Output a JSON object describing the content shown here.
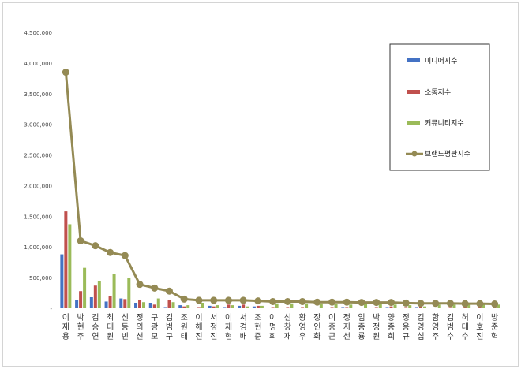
{
  "chart_data": {
    "type": "bar",
    "title": "",
    "xlabel": "",
    "ylabel": "",
    "ylim": [
      0,
      4500000
    ],
    "yticks": [
      0,
      500000,
      1000000,
      1500000,
      2000000,
      2500000,
      3000000,
      3500000,
      4000000,
      4500000
    ],
    "ytick_labels": [
      "-",
      "500,000",
      "1,000,000",
      "1,500,000",
      "2,000,000",
      "2,500,000",
      "3,000,000",
      "3,500,000",
      "4,000,000",
      "4,500,000"
    ],
    "grid": false,
    "legend_position": "right",
    "categories": [
      "이재용",
      "박현주",
      "김승연",
      "최태원",
      "신동빈",
      "정의선",
      "구광모",
      "김범구",
      "조원태",
      "이해진",
      "서정진",
      "이재현",
      "서경배",
      "조현준",
      "이명희",
      "신창재",
      "황영우",
      "장인화",
      "이중근",
      "정지선",
      "임종룡",
      "박정원",
      "양종희",
      "정용규",
      "김영섭",
      "함영주",
      "김범수",
      "허태수",
      "이호진",
      "방준혁"
    ],
    "series": [
      {
        "name": "미디어지수",
        "type": "bar",
        "color": "#4472c4",
        "values": [
          880000,
          130000,
          180000,
          110000,
          160000,
          90000,
          90000,
          20000,
          50000,
          10000,
          40000,
          20000,
          40000,
          30000,
          10000,
          10000,
          10000,
          10000,
          10000,
          20000,
          10000,
          10000,
          20000,
          10000,
          20000,
          10000,
          10000,
          10000,
          10000,
          10000
        ]
      },
      {
        "name": "소통지수",
        "type": "bar",
        "color": "#c0504d",
        "values": [
          1580000,
          280000,
          370000,
          200000,
          150000,
          140000,
          60000,
          130000,
          30000,
          20000,
          30000,
          60000,
          60000,
          40000,
          20000,
          20000,
          20000,
          10000,
          20000,
          20000,
          10000,
          20000,
          30000,
          20000,
          40000,
          10000,
          20000,
          20000,
          20000,
          20000
        ]
      },
      {
        "name": "커뮤니티지수",
        "type": "bar",
        "color": "#9bbb59",
        "values": [
          1370000,
          660000,
          450000,
          560000,
          500000,
          100000,
          160000,
          100000,
          50000,
          90000,
          50000,
          50000,
          30000,
          40000,
          80000,
          80000,
          80000,
          80000,
          70000,
          60000,
          80000,
          70000,
          60000,
          50000,
          30000,
          60000,
          60000,
          60000,
          60000,
          60000
        ]
      },
      {
        "name": "브랜드평판지수",
        "type": "line",
        "color": "#948a54",
        "values": [
          3850000,
          1100000,
          1020000,
          910000,
          860000,
          390000,
          330000,
          280000,
          150000,
          130000,
          130000,
          130000,
          130000,
          120000,
          110000,
          110000,
          110000,
          100000,
          100000,
          100000,
          95000,
          95000,
          95000,
          85000,
          80000,
          80000,
          80000,
          75000,
          75000,
          70000
        ]
      }
    ]
  }
}
